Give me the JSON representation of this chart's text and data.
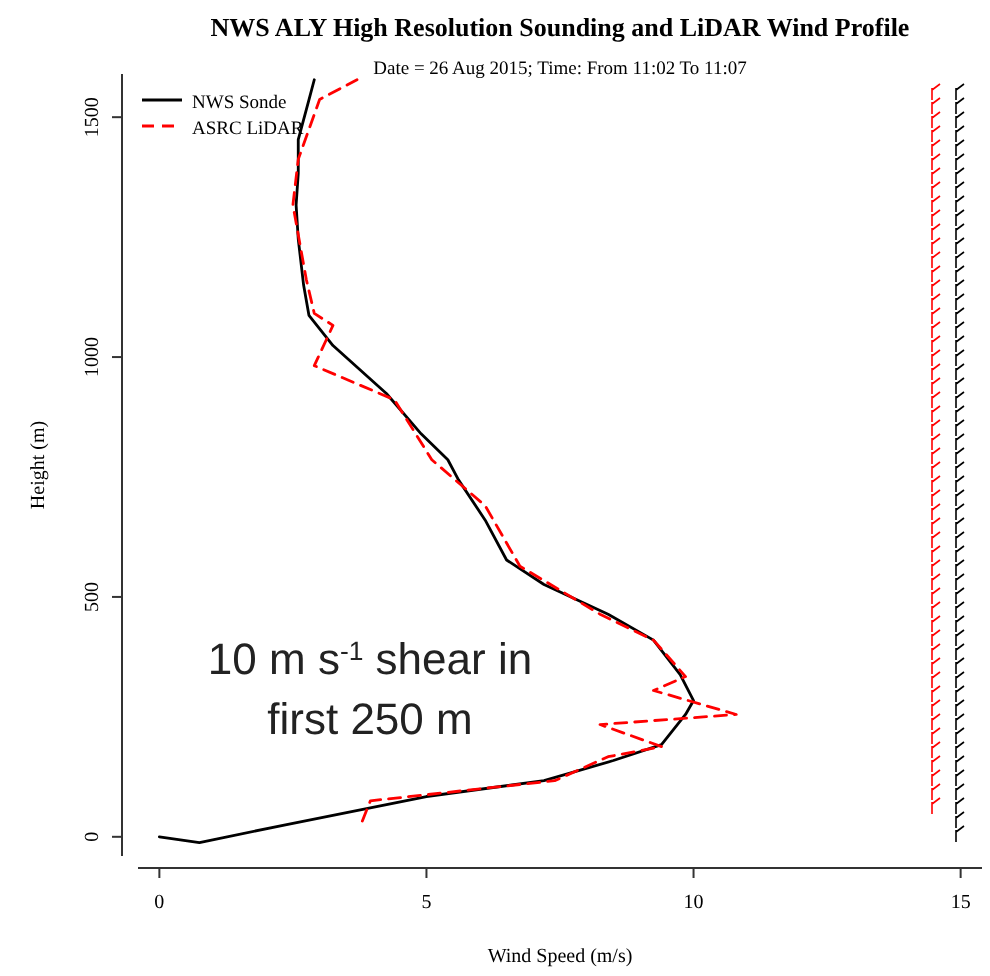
{
  "chart_data": {
    "type": "line",
    "title": "NWS ALY High Resolution Sounding and LiDAR Wind Profile",
    "subtitle": "Date = 26 Aug 2015; Time: From 11:02 To 11:07",
    "xlabel": "Wind Speed (m/s)",
    "ylabel": "Height (m)",
    "xlim": [
      -0.4,
      15.4
    ],
    "ylim": [
      -40,
      1590
    ],
    "xticks": [
      0,
      5,
      10,
      15
    ],
    "yticks": [
      0,
      500,
      1000,
      1500
    ],
    "grid": false,
    "legend": "top left",
    "annotations": [
      "10 m s$^{-1}$ shear in first 250 m"
    ],
    "series": [
      {
        "name": "NWS Sonde",
        "color": "#000000",
        "line_style": "solid",
        "x": [
          0,
          0.75,
          2.36,
          5,
          7.2,
          8.5,
          9.4,
          9.85,
          10,
          9.75,
          9.25,
          8.4,
          7.2,
          6.5,
          6.1,
          5.6,
          5.4,
          4.9,
          4.25,
          3.25,
          2.8,
          2.7,
          2.6,
          2.56,
          2.6,
          2.6,
          2.8,
          2.9
        ],
        "values": [
          0,
          -12,
          25,
          84,
          117,
          159,
          192,
          255,
          284,
          338,
          410,
          464,
          526,
          577,
          660,
          744,
          786,
          840,
          924,
          1024,
          1087,
          1150,
          1246,
          1317,
          1383,
          1453,
          1536,
          1578
        ]
      },
      {
        "name": "ASRC LiDAR",
        "color": "#ff0000",
        "line_style": "dashed",
        "x": [
          3.8,
          3.95,
          7.4,
          8.4,
          9.4,
          8.25,
          10.8,
          9.25,
          9.85,
          9.25,
          8.25,
          6.75,
          6.1,
          5.1,
          4.4,
          2.9,
          3.25,
          2.9,
          2.75,
          2.5,
          2.6,
          3.0,
          3.7
        ],
        "values": [
          33,
          75,
          117,
          167,
          188,
          234,
          255,
          305,
          334,
          410,
          464,
          564,
          690,
          786,
          911,
          982,
          1066,
          1091,
          1162,
          1317,
          1412,
          1537,
          1578
        ]
      }
    ]
  }
}
